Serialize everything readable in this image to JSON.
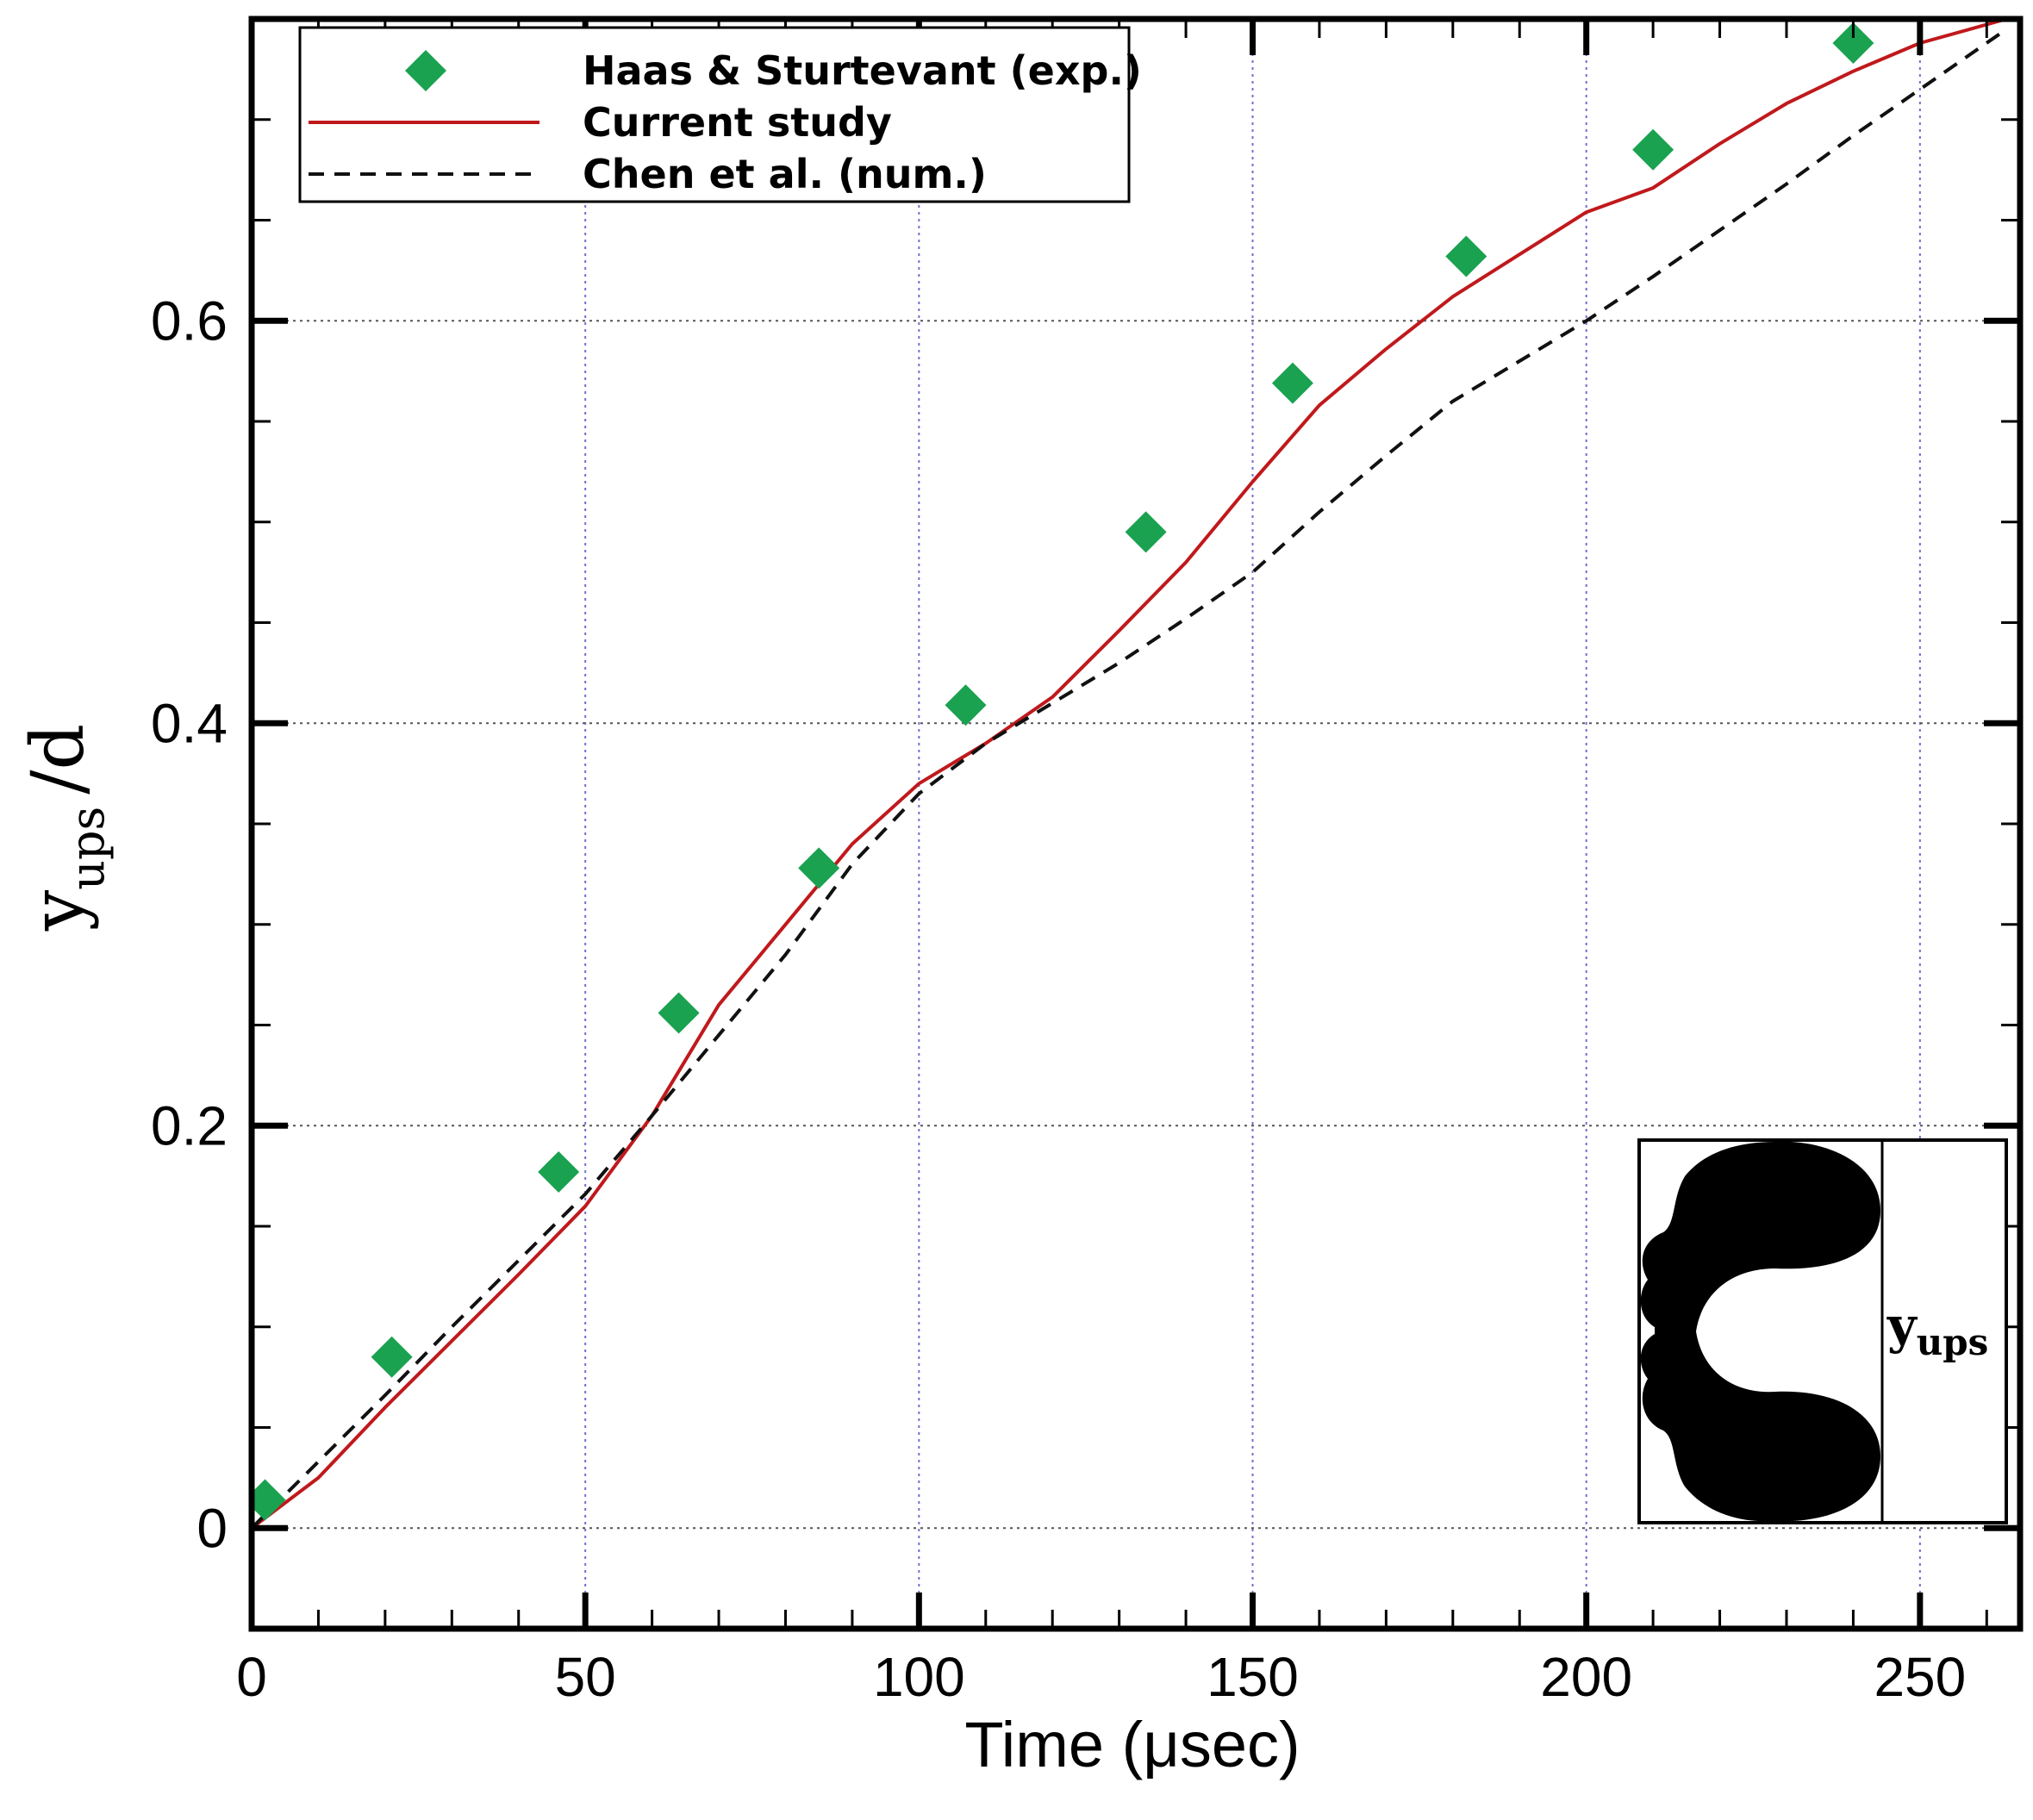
{
  "chart_data": {
    "type": "line",
    "title": "",
    "xlabel": "Time (μsec)",
    "ylabel_main": "y",
    "ylabel_sub": "ups",
    "ylabel_suffix": "/d",
    "xlim": [
      0,
      265
    ],
    "ylim": [
      -0.05,
      0.75
    ],
    "xticks": [
      0,
      50,
      100,
      150,
      200,
      250
    ],
    "xtick_labels": [
      "0",
      "50",
      "100",
      "150",
      "200",
      "250"
    ],
    "yticks": [
      0,
      0.2,
      0.4,
      0.6
    ],
    "ytick_labels": [
      "0",
      "0.2",
      "0.4",
      "0.6"
    ],
    "x_minor_step": 10,
    "y_minor_step": 0.05,
    "grid": true,
    "legend_position": "top-left",
    "series": [
      {
        "name": "Haas & Sturtevant (exp.)",
        "kind": "scatter",
        "marker": "diamond",
        "color": "#1aa250",
        "x": [
          2,
          21,
          46,
          64,
          85,
          107,
          134,
          156,
          182,
          210,
          240
        ],
        "y": [
          0.014,
          0.085,
          0.177,
          0.256,
          0.328,
          0.409,
          0.495,
          0.569,
          0.632,
          0.685,
          0.738
        ]
      },
      {
        "name": "Current study",
        "kind": "line",
        "style": "solid",
        "color": "#c0191c",
        "x": [
          0,
          10,
          20,
          30,
          40,
          50,
          60,
          70,
          80,
          90,
          100,
          110,
          120,
          130,
          140,
          150,
          160,
          170,
          180,
          190,
          200,
          210,
          220,
          230,
          240,
          250,
          263
        ],
        "y": [
          0,
          0.025,
          0.06,
          0.093,
          0.126,
          0.16,
          0.205,
          0.26,
          0.3,
          0.34,
          0.37,
          0.39,
          0.413,
          0.446,
          0.48,
          0.52,
          0.558,
          0.586,
          0.612,
          0.633,
          0.654,
          0.666,
          0.688,
          0.708,
          0.724,
          0.738,
          0.75
        ]
      },
      {
        "name": "Chen et al. (num.)",
        "kind": "line",
        "style": "dashed",
        "color": "#111111",
        "x": [
          0,
          10,
          20,
          30,
          40,
          50,
          60,
          70,
          80,
          90,
          100,
          110,
          120,
          130,
          140,
          150,
          160,
          170,
          180,
          190,
          200,
          210,
          220,
          230,
          240,
          250,
          263
        ],
        "y": [
          0,
          0.033,
          0.066,
          0.1,
          0.133,
          0.166,
          0.205,
          0.245,
          0.285,
          0.33,
          0.365,
          0.39,
          0.41,
          0.43,
          0.452,
          0.475,
          0.505,
          0.533,
          0.56,
          0.58,
          0.6,
          0.622,
          0.645,
          0.668,
          0.692,
          0.715,
          0.745
        ]
      }
    ],
    "inset": {
      "label_main": "y",
      "label_sub": "ups"
    }
  }
}
